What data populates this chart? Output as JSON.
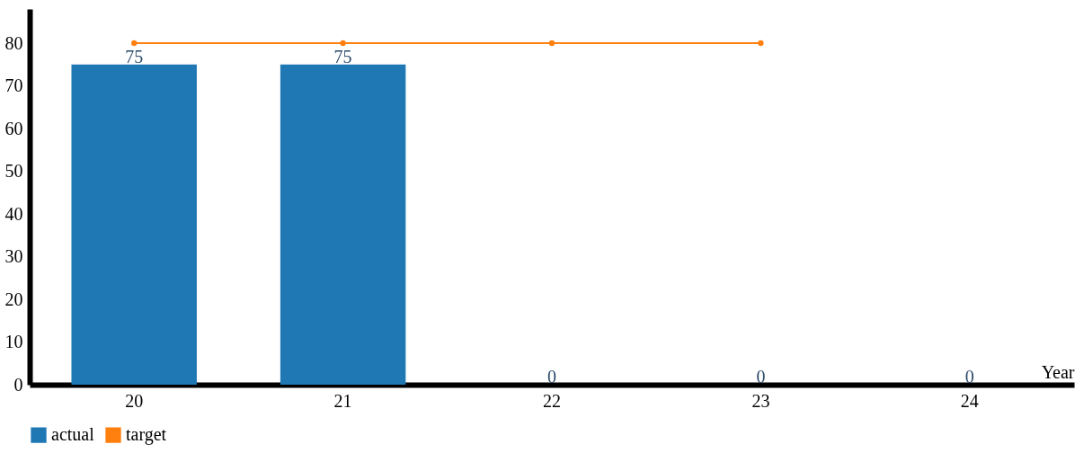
{
  "chart_data": {
    "type": "bar",
    "xlabel": "Year",
    "categories": [
      "20",
      "21",
      "22",
      "23",
      "24"
    ],
    "series": [
      {
        "name": "actual",
        "color": "#1f77b4",
        "values": [
          75,
          75,
          0,
          0,
          0
        ],
        "value_labels": [
          "75",
          "75",
          "0",
          "0",
          "0"
        ]
      },
      {
        "name": "target",
        "type": "line",
        "color": "#ff7f0e",
        "values": [
          80,
          80,
          80,
          80,
          null
        ]
      }
    ],
    "ylim": [
      0,
      88
    ],
    "yticks": [
      0,
      10,
      20,
      30,
      40,
      50,
      60,
      70,
      80
    ],
    "grid": false,
    "legend": "bottom",
    "marker": "circle"
  }
}
